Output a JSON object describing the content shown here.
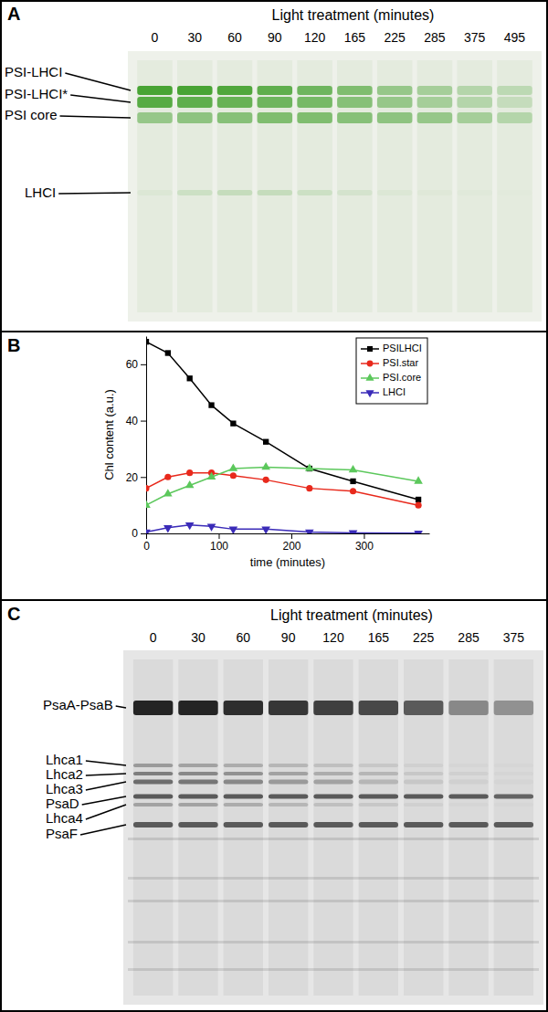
{
  "chart_data": {
    "type": "line",
    "annotations": [
      "B"
    ],
    "xlabel": "time (minutes)",
    "ylabel": "Chl content (a.u.)",
    "x": [
      0,
      30,
      60,
      90,
      120,
      165,
      225,
      285,
      375
    ],
    "series": [
      {
        "name": "PSILHCI",
        "color": "#000000",
        "marker": "square",
        "values": [
          68,
          64,
          55,
          45.5,
          39,
          32.5,
          23,
          18.5,
          12
        ]
      },
      {
        "name": "PSI.star",
        "color": "#e8291c",
        "marker": "circle",
        "values": [
          16,
          20,
          21.5,
          21.5,
          20.5,
          19,
          16,
          15,
          10
        ]
      },
      {
        "name": "PSI.core",
        "color": "#5cc85c",
        "marker": "triangle-up",
        "values": [
          10,
          14,
          17,
          20,
          23,
          23.5,
          23,
          22.5,
          18.5
        ]
      },
      {
        "name": "LHCI",
        "color": "#3a2bb8",
        "marker": "triangle-down",
        "values": [
          0.5,
          2,
          3,
          2.5,
          1.5,
          1.5,
          0.5,
          0.2,
          0.1
        ]
      }
    ],
    "xlim": [
      0,
      390
    ],
    "ylim": [
      0,
      70
    ],
    "xticks": [
      0,
      100,
      200,
      300
    ],
    "yticks": [
      0,
      20,
      40,
      60
    ],
    "legend": "top-right"
  },
  "gel_a": {
    "panel_label": "A",
    "title": "Light treatment (minutes)",
    "lanes": [
      0,
      30,
      60,
      90,
      120,
      165,
      225,
      285,
      375,
      495
    ],
    "bands": [
      {
        "label": "PSI-LHCI",
        "intensity": [
          1,
          1,
          0.95,
          0.85,
          0.75,
          0.65,
          0.5,
          0.4,
          0.3,
          0.25
        ]
      },
      {
        "label": "PSI-LHCI*",
        "intensity": [
          0.9,
          0.85,
          0.8,
          0.75,
          0.7,
          0.6,
          0.5,
          0.4,
          0.3,
          0.2
        ]
      },
      {
        "label": "PSI core",
        "intensity": [
          0.5,
          0.55,
          0.6,
          0.65,
          0.65,
          0.6,
          0.55,
          0.5,
          0.4,
          0.3
        ]
      },
      {
        "label": "LHCI",
        "intensity": [
          0.05,
          0.15,
          0.2,
          0.2,
          0.15,
          0.1,
          0.05,
          0.03,
          0.02,
          0.01
        ]
      }
    ]
  },
  "gel_c": {
    "panel_label": "C",
    "title": "Light treatment (minutes)",
    "lanes": [
      0,
      30,
      60,
      90,
      120,
      165,
      225,
      285,
      375
    ],
    "bands": [
      {
        "label": "PsaA-PsaB",
        "intensity": [
          1,
          1,
          0.95,
          0.9,
          0.85,
          0.8,
          0.7,
          0.45,
          0.4
        ]
      },
      {
        "label": "Lhca1",
        "intensity": [
          0.35,
          0.3,
          0.25,
          0.2,
          0.15,
          0.1,
          0.05,
          0.03,
          0.02
        ]
      },
      {
        "label": "Lhca2",
        "intensity": [
          0.5,
          0.45,
          0.4,
          0.3,
          0.25,
          0.2,
          0.1,
          0.05,
          0.03
        ]
      },
      {
        "label": "Lhca3",
        "intensity": [
          0.6,
          0.55,
          0.45,
          0.35,
          0.3,
          0.2,
          0.1,
          0.05,
          0.03
        ]
      },
      {
        "label": "PsaD",
        "intensity": [
          0.7,
          0.7,
          0.7,
          0.7,
          0.7,
          0.7,
          0.7,
          0.7,
          0.65
        ]
      },
      {
        "label": "Lhca4",
        "intensity": [
          0.3,
          0.3,
          0.25,
          0.2,
          0.15,
          0.1,
          0.05,
          0.03,
          0.02
        ]
      },
      {
        "label": "PsaF",
        "intensity": [
          0.7,
          0.7,
          0.7,
          0.7,
          0.7,
          0.7,
          0.7,
          0.7,
          0.7
        ]
      }
    ]
  }
}
